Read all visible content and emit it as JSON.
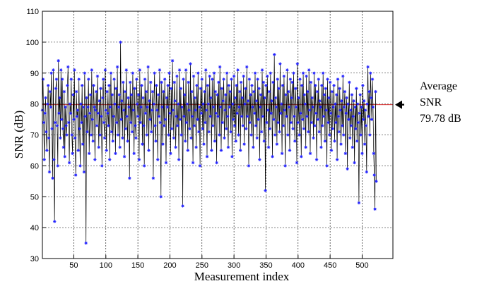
{
  "chart_data": {
    "type": "line",
    "xlabel": "Measurement index",
    "ylabel": "SNR (dB)",
    "xlim": [
      1,
      548
    ],
    "ylim": [
      30,
      110
    ],
    "xticks": [
      50,
      100,
      150,
      200,
      250,
      300,
      350,
      400,
      450,
      500
    ],
    "yticks": [
      30,
      40,
      50,
      60,
      70,
      80,
      90,
      100,
      110
    ],
    "grid": true,
    "colors": {
      "line": "#000000",
      "marker": "#1f1fff",
      "average": "#d42020",
      "grid": "#000000"
    },
    "marker": "star",
    "series": [
      {
        "x_start": 1,
        "values": [
          78,
          88,
          74,
          62,
          77,
          82,
          71,
          65,
          80,
          86,
          69,
          58,
          84,
          79,
          90,
          72,
          56,
          91,
          62,
          42,
          74,
          85,
          88,
          73,
          60,
          94,
          77,
          82,
          69,
          91,
          75,
          88,
          72,
          66,
          84,
          63,
          79,
          73,
          70,
          86,
          92,
          74,
          61,
          80,
          77,
          88,
          70,
          64,
          83,
          75,
          91,
          69,
          57,
          84,
          76,
          78,
          65,
          88,
          72,
          60,
          80,
          74,
          86,
          67,
          79,
          58,
          90,
          76,
          35,
          82,
          71,
          79,
          88,
          64,
          77,
          83,
          70,
          91,
          75,
          68,
          86,
          79,
          62,
          78,
          84,
          73,
          89,
          77,
          66,
          81,
          70,
          85,
          76,
          60,
          82,
          88,
          74,
          69,
          91,
          78,
          65,
          84,
          77,
          73,
          86,
          62,
          79,
          90,
          71,
          83,
          68,
          76,
          88,
          80,
          64,
          85,
          74,
          92,
          70,
          79,
          83,
          66,
          100,
          75,
          81,
          69,
          87,
          78,
          63,
          84,
          72,
          91,
          76,
          68,
          82,
          79,
          56,
          87,
          74,
          83,
          71,
          90,
          78,
          64,
          85,
          73,
          69,
          88,
          80,
          76,
          83,
          62,
          91,
          74,
          79,
          86,
          67,
          82,
          73,
          60,
          88,
          77,
          84,
          70,
          79,
          92,
          65,
          81,
          75,
          87,
          71,
          78,
          84,
          56,
          80,
          90,
          73,
          68,
          86,
          78,
          62,
          83,
          76,
          91,
          74,
          50,
          87,
          79,
          67,
          84,
          73,
          88,
          75,
          61,
          82,
          79,
          86,
          70,
          90,
          77,
          64,
          85,
          72,
          94,
          78,
          69,
          87,
          81,
          66,
          76,
          89,
          73,
          80,
          62,
          91,
          75,
          85,
          70,
          79,
          47,
          88,
          76,
          83,
          68,
          91,
          74,
          80,
          65,
          87,
          78,
          72,
          93,
          69,
          84,
          76,
          61,
          89,
          73,
          82,
          78,
          66,
          86,
          75,
          90,
          71,
          79,
          60,
          85,
          77,
          88,
          72,
          80,
          67,
          84,
          74,
          91,
          78,
          63,
          86,
          80,
          71,
          89,
          76,
          82,
          65,
          88,
          73,
          79,
          90,
          68,
          84,
          77,
          61,
          83,
          76,
          87,
          70,
          92,
          79,
          65,
          85,
          74,
          81,
          88,
          69,
          78,
          83,
          72,
          90,
          76,
          66,
          86,
          79,
          84,
          71,
          88,
          63,
          80,
          75,
          89,
          73,
          82,
          68,
          86,
          77,
          91,
          70,
          79,
          84,
          65,
          87,
          76,
          82,
          73,
          89,
          67,
          80,
          85,
          72,
          92,
          76,
          81,
          60,
          88,
          74,
          83,
          70,
          86,
          79,
          66,
          84,
          77,
          90,
          73,
          81,
          69,
          88,
          75,
          85,
          62,
          79,
          83,
          71,
          91,
          76,
          87,
          68,
          82,
          52,
          86,
          74,
          89,
          78,
          66,
          84,
          72,
          90,
          77,
          81,
          63,
          87,
          75,
          96,
          70,
          82,
          79,
          67,
          88,
          74,
          85,
          71,
          93,
          77,
          80,
          64,
          86,
          73,
          89,
          78,
          60,
          83,
          76,
          91,
          70,
          84,
          79,
          65,
          88,
          74,
          82,
          87,
          72,
          90,
          76,
          68,
          85,
          79,
          61,
          93,
          74,
          82,
          70,
          88,
          77,
          63,
          86,
          75,
          90,
          72,
          83,
          80,
          66,
          89,
          76,
          84,
          71,
          91,
          78,
          64,
          87,
          74,
          82,
          79,
          69,
          90,
          73,
          86,
          77,
          62,
          84,
          75,
          88,
          71,
          81,
          79,
          66,
          86,
          73,
          90,
          76,
          83,
          68,
          85,
          78,
          60,
          88,
          74,
          82,
          70,
          87,
          77,
          65,
          84,
          72,
          79,
          86,
          68,
          80,
          74,
          83,
          62,
          88,
          76,
          71,
          85,
          78,
          67,
          81,
          73,
          89,
          70,
          79,
          84,
          64,
          77,
          82,
          59,
          80,
          75,
          87,
          69,
          78,
          73,
          83,
          66,
          76,
          81,
          61,
          79,
          72,
          85,
          68,
          80,
          74,
          48,
          77,
          83,
          70,
          79,
          64,
          86,
          75,
          81,
          67,
          78,
          73,
          58,
          80,
          92,
          76,
          84,
          70,
          90,
          82,
          75,
          88,
          79,
          64,
          57,
          46,
          84,
          55
        ]
      }
    ],
    "average_line": {
      "value": 79.78
    },
    "annotation": {
      "line1": "Average",
      "line2": "SNR",
      "line3": "79.78 dB"
    }
  }
}
